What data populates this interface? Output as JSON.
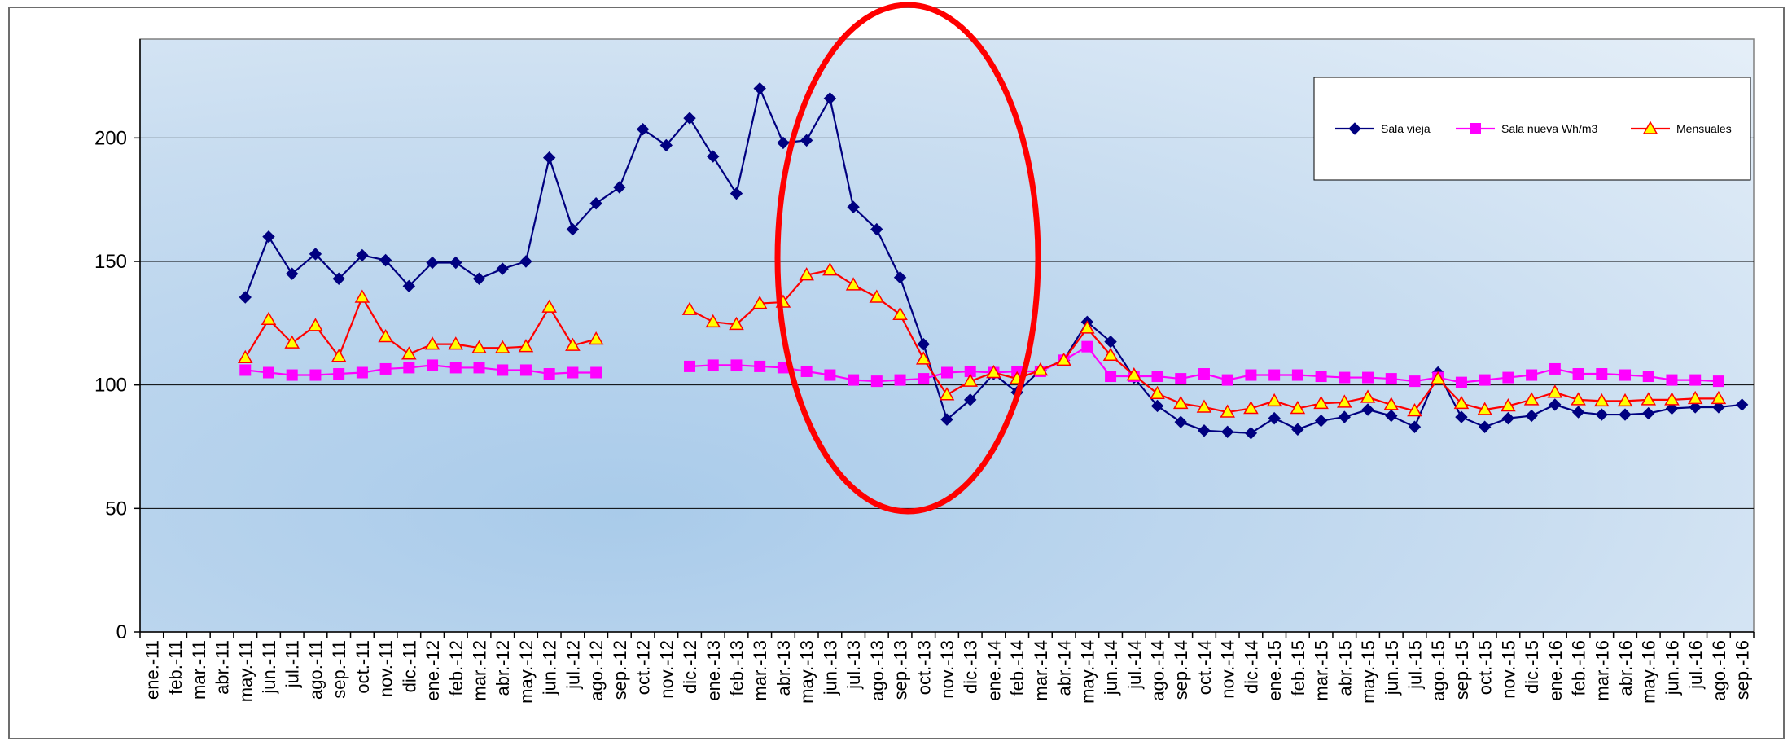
{
  "chart_data": {
    "type": "line",
    "title": "",
    "xlabel": "",
    "ylabel": "",
    "ylim": [
      0,
      240
    ],
    "yticks": [
      0,
      50,
      100,
      150,
      200
    ],
    "grid": "horizontal",
    "legend_position": "top-right",
    "categories": [
      "ene.-11",
      "feb.-11",
      "mar.-11",
      "abr.-11",
      "may.-11",
      "jun.-11",
      "jul.-11",
      "ago.-11",
      "sep.-11",
      "oct.-11",
      "nov.-11",
      "dic.-11",
      "ene.-12",
      "feb.-12",
      "mar.-12",
      "abr.-12",
      "may.-12",
      "jun.-12",
      "jul.-12",
      "ago.-12",
      "sep.-12",
      "oct.-12",
      "nov.-12",
      "dic.-12",
      "ene.-13",
      "feb.-13",
      "mar.-13",
      "abr.-13",
      "may.-13",
      "jun.-13",
      "jul.-13",
      "ago.-13",
      "sep.-13",
      "oct.-13",
      "nov.-13",
      "dic.-13",
      "ene.-14",
      "feb.-14",
      "mar.-14",
      "abr.-14",
      "may.-14",
      "jun.-14",
      "jul.-14",
      "ago.-14",
      "sep.-14",
      "oct.-14",
      "nov.-14",
      "dic.-14",
      "ene.-15",
      "feb.-15",
      "mar.-15",
      "abr.-15",
      "may.-15",
      "jun.-15",
      "jul.-15",
      "ago.-15",
      "sep.-15",
      "oct.-15",
      "nov.-15",
      "dic.-15",
      "ene.-16",
      "feb.-16",
      "mar.-16",
      "abr.-16",
      "may.-16",
      "jun.-16",
      "jul.-16",
      "ago.-16",
      "sep.-16"
    ],
    "series": [
      {
        "name": "Sala vieja",
        "color": "#000080",
        "marker": "diamond",
        "values": [
          null,
          null,
          null,
          null,
          135.5,
          160,
          145,
          153,
          143,
          152.5,
          150.5,
          140,
          149.5,
          149.5,
          143,
          147,
          150,
          192,
          163,
          173.5,
          180,
          203.5,
          197,
          208,
          192.5,
          177.5,
          220,
          198,
          199,
          216,
          172,
          163,
          143.5,
          116.5,
          86,
          94,
          104.5,
          97,
          106,
          110,
          125.5,
          117.5,
          103,
          91.5,
          85,
          81.5,
          81,
          80.5,
          86.5,
          82,
          85.5,
          87,
          90,
          87.5,
          83,
          105,
          87,
          83,
          86.5,
          87.5,
          92,
          89,
          88,
          88,
          88.5,
          90.5,
          91,
          91,
          92
        ]
      },
      {
        "name": "Sala nueva Wh/m3",
        "color": "#ff00ff",
        "marker": "square",
        "values": [
          null,
          null,
          null,
          null,
          106,
          105,
          104,
          104,
          104.5,
          105,
          106.5,
          107,
          108,
          107,
          107,
          106,
          106,
          104.5,
          105,
          105,
          null,
          null,
          null,
          107.5,
          108,
          108,
          107.5,
          107,
          105.5,
          104,
          102,
          101.5,
          102,
          102.5,
          105,
          105.5,
          105,
          105.5,
          105.5,
          110,
          115.5,
          103.5,
          103.5,
          103.5,
          102.5,
          104.5,
          102,
          104,
          104,
          104,
          103.5,
          103,
          103,
          102.5,
          101.5,
          103,
          101,
          102,
          103,
          104,
          106.5,
          104.5,
          104.5,
          104,
          103.5,
          102,
          102,
          101.5,
          null
        ]
      },
      {
        "name": "Mensuales",
        "color": "#ff0000",
        "marker": "triangle",
        "values": [
          null,
          null,
          null,
          null,
          111,
          126.5,
          117,
          124,
          111.5,
          135.5,
          119.5,
          112.5,
          116.5,
          116.5,
          115,
          115,
          115.5,
          131.5,
          116,
          118.5,
          null,
          null,
          null,
          130.5,
          125.5,
          124.5,
          133,
          133.5,
          144.5,
          146.5,
          140.5,
          135.5,
          128.5,
          110.5,
          96,
          101.5,
          105,
          102.5,
          106,
          110,
          123,
          112,
          104,
          96.5,
          92.5,
          91,
          89,
          90.5,
          93.5,
          90.5,
          92.5,
          93,
          95,
          92,
          89.5,
          102.5,
          92.5,
          90,
          91.5,
          94,
          97,
          94,
          93.5,
          93.5,
          94,
          94,
          94.5,
          94.5,
          null
        ]
      }
    ]
  },
  "colors": {
    "highlight_ellipse": "#ff0000",
    "marker_triangle_fill": "#ffff00",
    "gridline": "#000000",
    "plot_bg_dark": "#b0d0ec",
    "plot_bg_light": "#eef4fb"
  }
}
